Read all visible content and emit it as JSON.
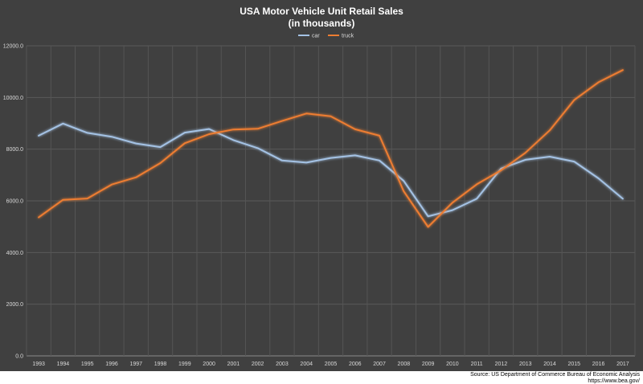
{
  "chart_data": {
    "type": "line",
    "title": "USA Motor Vehicle Unit Retail Sales",
    "subtitle": "(in thousands)",
    "categories": [
      "1993",
      "1994",
      "1995",
      "1996",
      "1997",
      "1998",
      "1999",
      "2000",
      "2001",
      "2002",
      "2003",
      "2004",
      "2005",
      "2006",
      "2007",
      "2008",
      "2009",
      "2010",
      "2011",
      "2012",
      "2013",
      "2014",
      "2015",
      "2016",
      "2017"
    ],
    "series": [
      {
        "name": "car",
        "color": "#a4c2e4",
        "values": [
          8520,
          8990,
          8630,
          8480,
          8220,
          8080,
          8640,
          8780,
          8350,
          8040,
          7560,
          7480,
          7660,
          7760,
          7560,
          6770,
          5400,
          5640,
          6080,
          7250,
          7590,
          7710,
          7520,
          6870,
          6080
        ]
      },
      {
        "name": "truck",
        "color": "#ed7d31",
        "values": [
          5360,
          6040,
          6090,
          6630,
          6910,
          7460,
          8230,
          8580,
          8760,
          8790,
          9090,
          9380,
          9270,
          8770,
          8520,
          6370,
          4990,
          5930,
          6640,
          7180,
          7860,
          8730,
          9900,
          10590,
          11060
        ]
      }
    ],
    "yticks": [
      "0.0",
      "2000.0",
      "4000.0",
      "6000.0",
      "8000.0",
      "10000.0",
      "12000.0"
    ],
    "ylim": [
      0,
      12000
    ],
    "grid": true,
    "legend": "top-center",
    "background": "#404040"
  },
  "source": {
    "line1": "Source: US Department of Commerce Bureau of Economic Analysis",
    "line2": "https://www.bea.gov/"
  }
}
